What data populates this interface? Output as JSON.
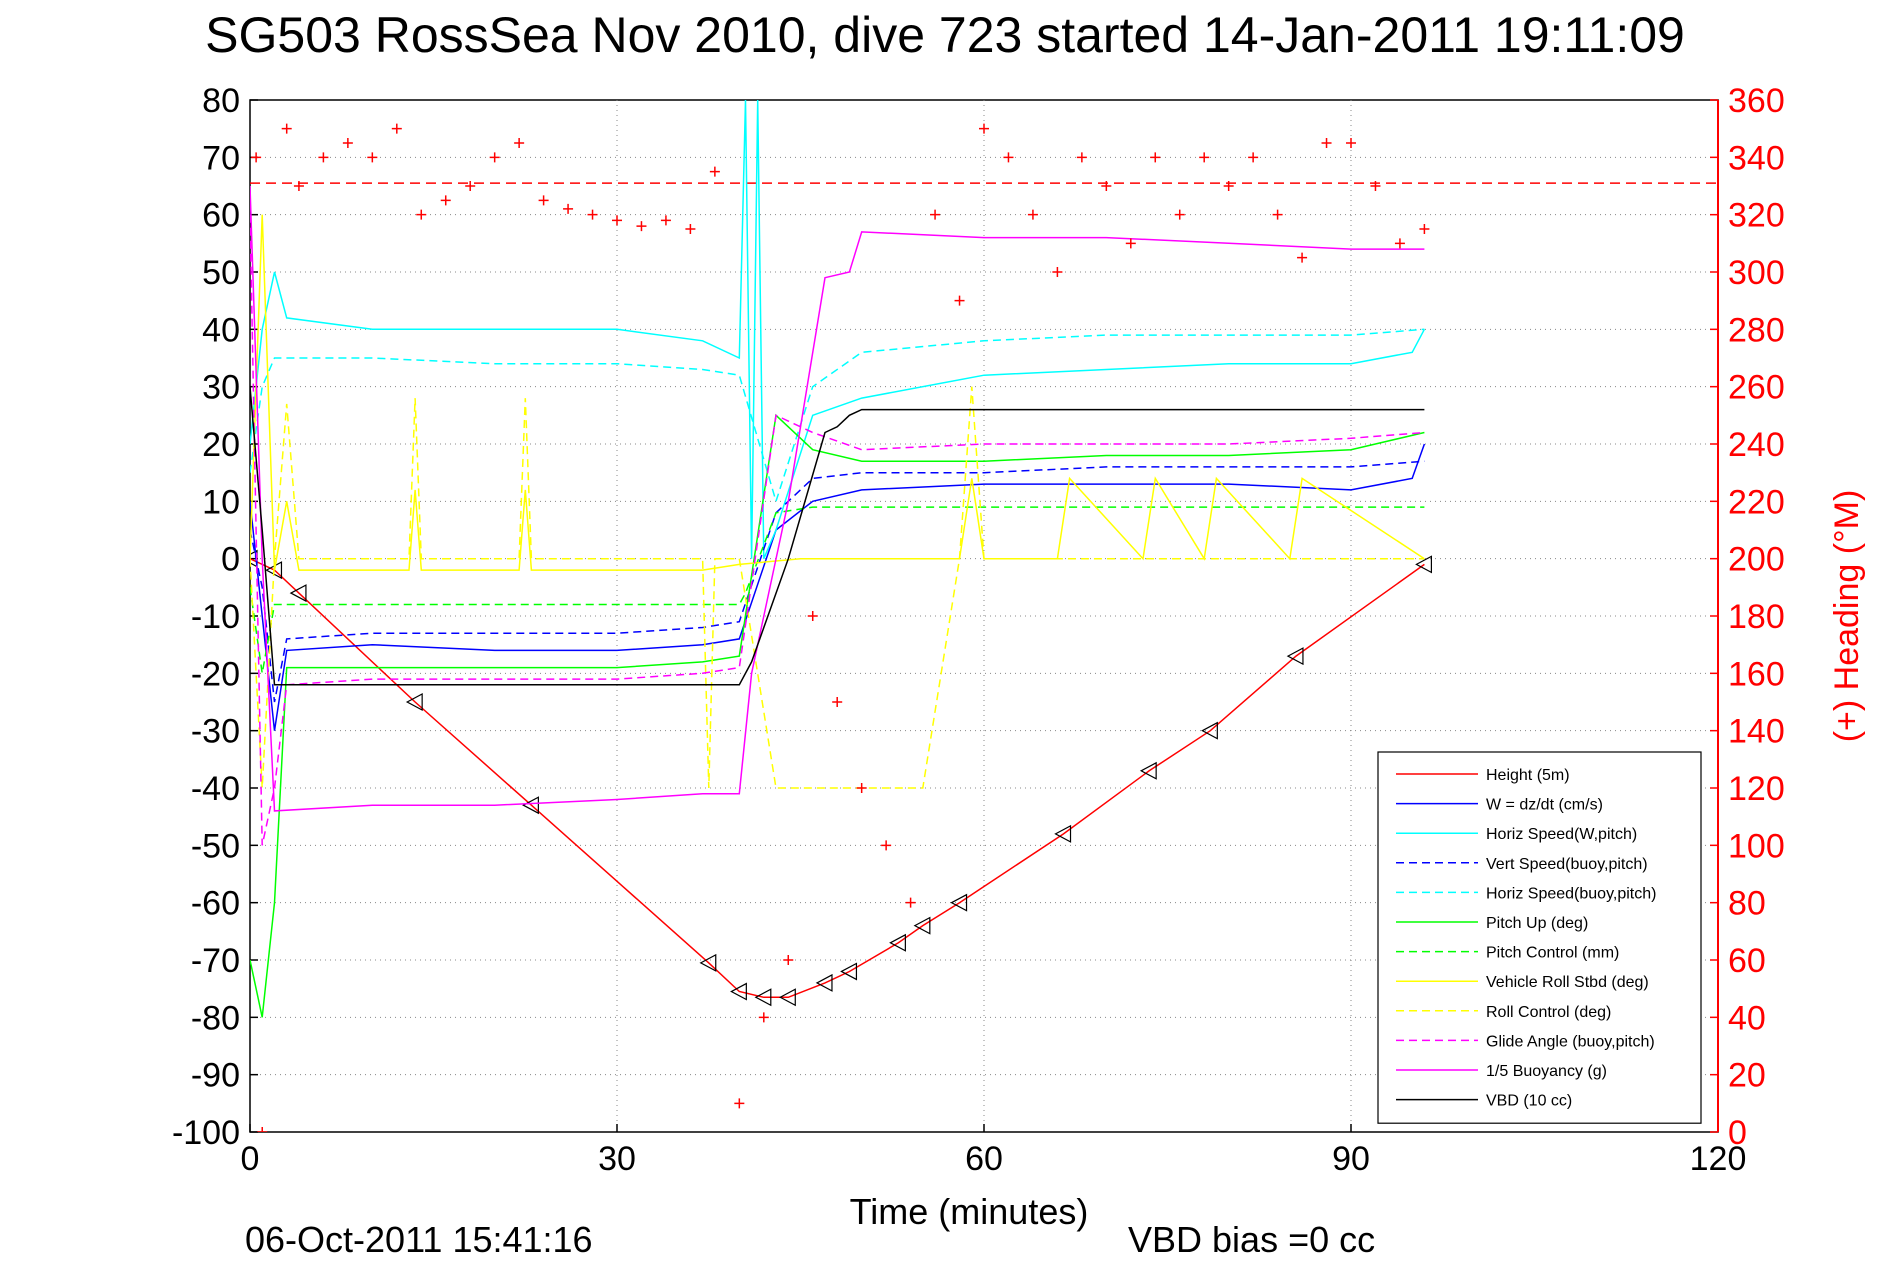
{
  "title": "SG503 RossSea Nov 2010, dive 723 started 14-Jan-2011 19:11:09",
  "footer": {
    "timestamp": "06-Oct-2011 15:41:16",
    "vbd_bias": "VBD bias =0 cc"
  },
  "chart_data": {
    "type": "line",
    "title": "SG503 RossSea Nov 2010, dive 723 started 14-Jan-2011 19:11:09",
    "xlabel": "Time (minutes)",
    "ylabel": "",
    "ylabel_right": "(+) Heading (°M)",
    "xlim": [
      0,
      120
    ],
    "ylim": [
      -100,
      80
    ],
    "ylim_right": [
      0,
      360
    ],
    "x_ticks": [
      0,
      30,
      60,
      90,
      120
    ],
    "y_ticks": [
      -100,
      -90,
      -80,
      -70,
      -60,
      -50,
      -40,
      -30,
      -20,
      -10,
      0,
      10,
      20,
      30,
      40,
      50,
      60,
      70,
      80
    ],
    "y_ticks_right": [
      0,
      20,
      40,
      60,
      80,
      100,
      120,
      140,
      160,
      180,
      200,
      220,
      240,
      260,
      280,
      300,
      320,
      340,
      360
    ],
    "grid": "dotted",
    "legend_position": "lower-right",
    "colors": {
      "axis_right": "#ff0000",
      "axis_left": "#000000"
    },
    "series": [
      {
        "name": "Height (5m)",
        "color": "#ff0000",
        "style": "solid",
        "marker": "triangle",
        "x": [
          0,
          2,
          4,
          13.5,
          23,
          37.5,
          40,
          42,
          44,
          47,
          49,
          53,
          55,
          58,
          66.5,
          73.5,
          78.5,
          85.5,
          96
        ],
        "y": [
          0,
          -2,
          -6,
          -25,
          -43,
          -70.5,
          -75.5,
          -76.5,
          -76.5,
          -74,
          -72,
          -67,
          -64,
          -60,
          -48,
          -37,
          -30,
          -17,
          -1
        ]
      },
      {
        "name": "W = dz/dt (cm/s)",
        "color": "#0000ff",
        "style": "solid",
        "x": [
          0,
          1,
          2,
          3,
          10,
          20,
          30,
          37,
          40,
          43,
          46,
          50,
          60,
          70,
          80,
          90,
          95,
          96
        ],
        "y": [
          10,
          -10,
          -30,
          -16,
          -15,
          -16,
          -16,
          -15,
          -14,
          5,
          10,
          12,
          13,
          13,
          13,
          12,
          14,
          20
        ]
      },
      {
        "name": "Horiz Speed(W,pitch)",
        "color": "#00ffff",
        "style": "solid",
        "x": [
          0,
          1,
          2,
          3,
          10,
          20,
          30,
          37,
          40,
          40.5,
          41,
          41.5,
          42,
          43,
          46,
          50,
          60,
          70,
          80,
          90,
          95,
          96
        ],
        "y": [
          20,
          40,
          50,
          42,
          40,
          40,
          40,
          38,
          35,
          80,
          0,
          80,
          0,
          5,
          25,
          28,
          32,
          33,
          34,
          34,
          36,
          40
        ]
      },
      {
        "name": "Vert Speed(buoy,pitch)",
        "color": "#0000ff",
        "style": "dashed",
        "x": [
          0,
          1,
          2,
          3,
          10,
          20,
          30,
          37,
          40,
          43,
          46,
          50,
          60,
          70,
          80,
          90,
          96
        ],
        "y": [
          5,
          -5,
          -25,
          -14,
          -13,
          -13,
          -13,
          -12,
          -11,
          8,
          14,
          15,
          15,
          16,
          16,
          16,
          17
        ]
      },
      {
        "name": "Horiz Speed(buoy,pitch)",
        "color": "#00ffff",
        "style": "dashed",
        "x": [
          0,
          1,
          2,
          3,
          10,
          20,
          30,
          37,
          40,
          43,
          46,
          50,
          60,
          70,
          80,
          90,
          96
        ],
        "y": [
          15,
          30,
          35,
          35,
          35,
          34,
          34,
          33,
          32,
          10,
          30,
          36,
          38,
          39,
          39,
          39,
          40
        ]
      },
      {
        "name": "Pitch Up (deg)",
        "color": "#00ff00",
        "style": "solid",
        "x": [
          0,
          1,
          2,
          3,
          10,
          20,
          30,
          37,
          40,
          43,
          46,
          50,
          60,
          70,
          80,
          90,
          96
        ],
        "y": [
          -70,
          -80,
          -60,
          -19,
          -19,
          -19,
          -19,
          -18,
          -17,
          25,
          19,
          17,
          17,
          18,
          18,
          19,
          22
        ]
      },
      {
        "name": "Pitch Control (mm)",
        "color": "#00ff00",
        "style": "dashed",
        "x": [
          0,
          1,
          2,
          3,
          40,
          40.5,
          43,
          46,
          96
        ],
        "y": [
          -5,
          -20,
          -8,
          -8,
          -8,
          -6,
          8,
          9,
          9
        ]
      },
      {
        "name": "Vehicle Roll Stbd (deg)",
        "color": "#ffff00",
        "style": "solid",
        "x": [
          0,
          1,
          2,
          3,
          4,
          10,
          13,
          13.5,
          14,
          22,
          22.5,
          23,
          30,
          37,
          40,
          45,
          50,
          58,
          59,
          60,
          66,
          67,
          73,
          74,
          78,
          79,
          85,
          86,
          96
        ],
        "y": [
          0,
          60,
          -2,
          10,
          -2,
          -2,
          -2,
          12,
          -2,
          -2,
          12,
          -2,
          -2,
          -2,
          -1,
          0,
          0,
          0,
          14,
          0,
          0,
          14,
          0,
          14,
          0,
          14,
          0,
          14,
          0
        ]
      },
      {
        "name": "Roll Control (deg)",
        "color": "#ffff00",
        "style": "dashed",
        "x": [
          0,
          1,
          2,
          3,
          4,
          10,
          13,
          13.5,
          14,
          22,
          22.5,
          23,
          30,
          37,
          37.5,
          38,
          40,
          43,
          48,
          53,
          55,
          58,
          59,
          60,
          96
        ],
        "y": [
          0,
          -40,
          0,
          27,
          0,
          0,
          0,
          28,
          0,
          0,
          28,
          0,
          0,
          0,
          -40,
          0,
          0,
          -40,
          -40,
          -40,
          -40,
          0,
          30,
          0,
          0
        ]
      },
      {
        "name": "Glide Angle (buoy,pitch)",
        "color": "#ff00ff",
        "style": "dashed",
        "x": [
          0,
          1,
          2,
          3,
          10,
          20,
          30,
          37,
          40,
          43,
          46,
          50,
          60,
          70,
          80,
          90,
          96
        ],
        "y": [
          60,
          -50,
          -40,
          -22,
          -21,
          -21,
          -21,
          -20,
          -19,
          25,
          22,
          19,
          20,
          20,
          20,
          21,
          22
        ]
      },
      {
        "name": "1/5 Buoyancy (g)",
        "color": "#ff00ff",
        "style": "solid",
        "x": [
          0,
          1,
          2,
          10,
          20,
          30,
          37,
          40,
          41,
          44,
          47,
          49,
          50,
          60,
          70,
          80,
          90,
          96
        ],
        "y": [
          65,
          0,
          -44,
          -43,
          -43,
          -42,
          -41,
          -41,
          -20,
          10,
          49,
          50,
          57,
          56,
          56,
          55,
          54,
          54
        ]
      },
      {
        "name": "VBD (10 cc)",
        "color": "#000000",
        "style": "solid",
        "x": [
          0,
          1,
          2,
          10,
          20,
          30,
          37,
          40,
          41,
          44,
          47,
          48,
          49,
          50,
          60,
          70,
          80,
          90,
          96
        ],
        "y": [
          30,
          5,
          -22,
          -22,
          -22,
          -22,
          -22,
          -22,
          -18,
          0,
          22,
          23,
          25,
          26,
          26,
          26,
          26,
          26,
          26
        ]
      },
      {
        "name": "(+) Heading",
        "color": "#ff0000",
        "axis": "right",
        "style": "markers",
        "marker": "plus",
        "x": [
          0.5,
          1,
          3,
          4,
          6,
          8,
          10,
          12,
          14,
          16,
          18,
          20,
          22,
          24,
          26,
          28,
          30,
          32,
          34,
          36,
          38,
          40,
          42,
          44,
          46,
          48,
          50,
          52,
          54,
          56,
          58,
          60,
          62,
          64,
          66,
          68,
          70,
          72,
          74,
          76,
          78,
          80,
          82,
          84,
          86,
          88,
          90,
          92,
          94,
          96
        ],
        "y": [
          340,
          0,
          350,
          330,
          340,
          345,
          340,
          350,
          320,
          325,
          330,
          340,
          345,
          325,
          322,
          320,
          318,
          316,
          318,
          315,
          335,
          10,
          40,
          60,
          180,
          150,
          120,
          100,
          80,
          320,
          290,
          350,
          340,
          320,
          300,
          340,
          330,
          310,
          340,
          320,
          340,
          330,
          340,
          320,
          305,
          345,
          345,
          330,
          310,
          315
        ]
      }
    ],
    "hline_right": {
      "value": 331,
      "color": "#ff0000",
      "style": "dashed"
    }
  }
}
